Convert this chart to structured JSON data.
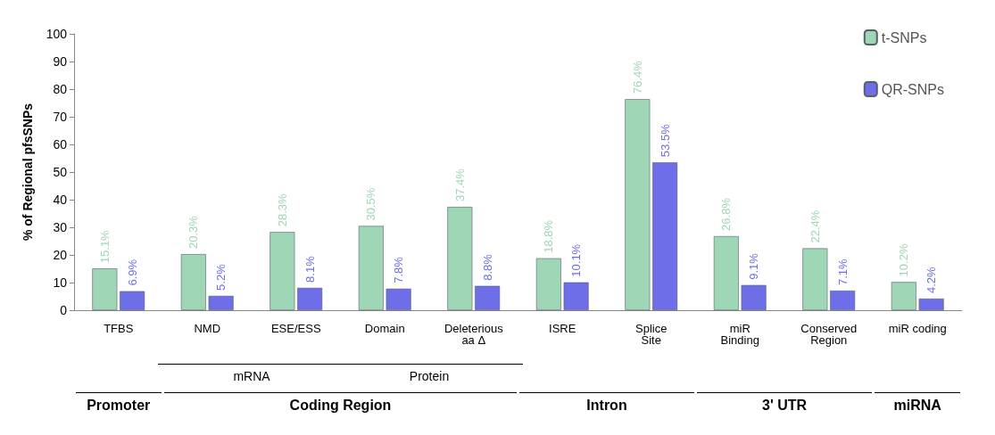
{
  "chart_data": {
    "type": "bar",
    "ylabel": "% of Regional pfsSNPs",
    "categories": [
      "TFBS",
      "NMD",
      "ESE/ESS",
      "Domain",
      "Deleterious\naa Δ",
      "ISRE",
      "Splice\nSite",
      "miR\nBinding",
      "Conserved\nRegion",
      "miR coding"
    ],
    "series": [
      {
        "name": "t-SNPs",
        "color": "#9fd6b6",
        "values": [
          15.1,
          20.3,
          28.3,
          30.5,
          37.4,
          18.8,
          76.4,
          26.8,
          22.4,
          10.2
        ],
        "value_labels": [
          "15.1%",
          "20.3%",
          "28.3%",
          "30.5%",
          "37.4%",
          "18.8%",
          "76.4%",
          "26.8%",
          "22.4%",
          "10.2%"
        ]
      },
      {
        "name": "QR-SNPs",
        "color": "#6e6ee8",
        "values": [
          6.9,
          5.2,
          8.1,
          7.8,
          8.8,
          10.1,
          53.5,
          9.1,
          7.1,
          4.2
        ],
        "value_labels": [
          "6.9%",
          "5.2%",
          "8.1%",
          "7.8%",
          "8.8%",
          "10.1%",
          "53.5%",
          "9.1%",
          "7.1%",
          "4.2%"
        ]
      }
    ],
    "ylim": [
      0,
      100
    ],
    "yticks": [
      0,
      10,
      20,
      30,
      40,
      50,
      60,
      70,
      80,
      90,
      100
    ],
    "grid": false,
    "legend": "top right",
    "annotations": [
      "mRNA",
      "Protein",
      "Promoter",
      "Coding Region",
      "Intron",
      "3' UTR",
      "miRNA"
    ]
  }
}
